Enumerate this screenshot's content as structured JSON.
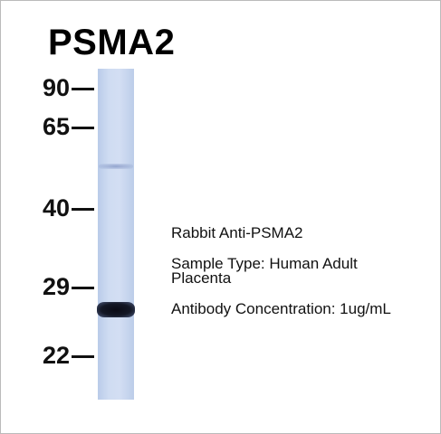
{
  "title": "PSMA2",
  "markers": [
    "90",
    "65",
    "40",
    "29",
    "22"
  ],
  "annotations": {
    "antibody": "Rabbit Anti-PSMA2",
    "sample_type": [
      "Sample Type: Human Adult",
      "Placenta"
    ],
    "concentration": "Antibody Concentration: 1ug/mL"
  }
}
